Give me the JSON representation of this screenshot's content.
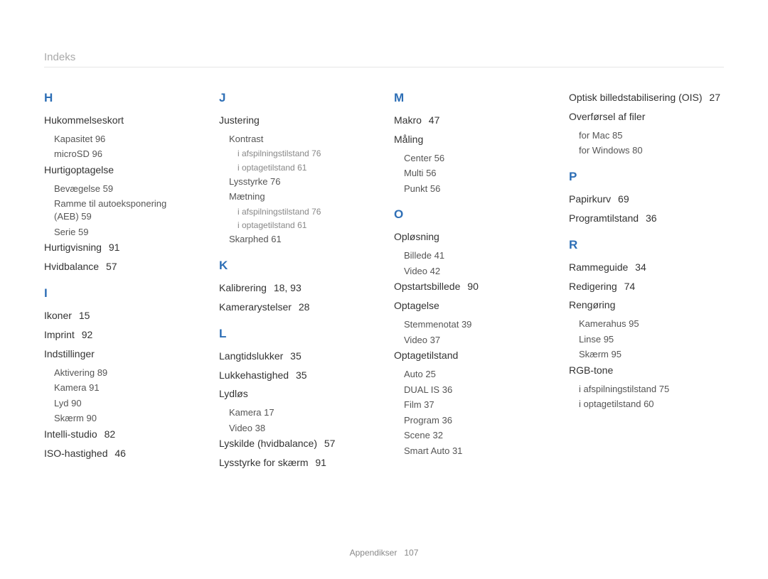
{
  "pageTitle": "Indeks",
  "footer": {
    "label": "Appendikser",
    "page": "107"
  },
  "columns": [
    {
      "sections": [
        {
          "letter": "H",
          "entries": [
            {
              "label": "Hukommelseskort",
              "subs": [
                {
                  "label": "Kapasitet",
                  "page": "96"
                },
                {
                  "label": "microSD",
                  "page": "96"
                }
              ]
            },
            {
              "label": "Hurtigoptagelse",
              "subs": [
                {
                  "label": "Bevægelse",
                  "page": "59"
                },
                {
                  "label": "Ramme til autoeksponering (AEB)",
                  "page": "59"
                },
                {
                  "label": "Serie",
                  "page": "59"
                }
              ]
            },
            {
              "label": "Hurtigvisning",
              "page": "91"
            },
            {
              "label": "Hvidbalance",
              "page": "57"
            }
          ]
        },
        {
          "letter": "I",
          "entries": [
            {
              "label": "Ikoner",
              "page": "15"
            },
            {
              "label": "Imprint",
              "page": "92"
            },
            {
              "label": "Indstillinger",
              "subs": [
                {
                  "label": "Aktivering",
                  "page": "89"
                },
                {
                  "label": "Kamera",
                  "page": "91"
                },
                {
                  "label": "Lyd",
                  "page": "90"
                },
                {
                  "label": "Skærm",
                  "page": "90"
                }
              ]
            },
            {
              "label": "Intelli-studio",
              "page": "82"
            },
            {
              "label": "ISO-hastighed",
              "page": "46"
            }
          ]
        }
      ]
    },
    {
      "sections": [
        {
          "letter": "J",
          "entries": [
            {
              "label": "Justering",
              "subs": [
                {
                  "label": "Kontrast",
                  "subsubs": [
                    {
                      "label": "i afspilningstilstand",
                      "page": "76"
                    },
                    {
                      "label": "i optagetilstand",
                      "page": "61"
                    }
                  ]
                },
                {
                  "label": "Lysstyrke",
                  "page": "76"
                },
                {
                  "label": "Mætning",
                  "subsubs": [
                    {
                      "label": "i afspilningstilstand",
                      "page": "76"
                    },
                    {
                      "label": "i optagetilstand",
                      "page": "61"
                    }
                  ]
                },
                {
                  "label": "Skarphed",
                  "page": "61"
                }
              ]
            }
          ]
        },
        {
          "letter": "K",
          "entries": [
            {
              "label": "Kalibrering",
              "page": "18, 93"
            },
            {
              "label": "Kamerarystelser",
              "page": "28"
            }
          ]
        },
        {
          "letter": "L",
          "entries": [
            {
              "label": "Langtidslukker",
              "page": "35"
            },
            {
              "label": "Lukkehastighed",
              "page": "35"
            },
            {
              "label": "Lydløs",
              "subs": [
                {
                  "label": "Kamera",
                  "page": "17"
                },
                {
                  "label": "Video",
                  "page": "38"
                }
              ]
            },
            {
              "label": "Lyskilde (hvidbalance)",
              "page": "57"
            },
            {
              "label": "Lysstyrke for skærm",
              "page": "91"
            }
          ]
        }
      ]
    },
    {
      "sections": [
        {
          "letter": "M",
          "entries": [
            {
              "label": "Makro",
              "page": "47"
            },
            {
              "label": "Måling",
              "subs": [
                {
                  "label": "Center",
                  "page": "56"
                },
                {
                  "label": "Multi",
                  "page": "56"
                },
                {
                  "label": "Punkt",
                  "page": "56"
                }
              ]
            }
          ]
        },
        {
          "letter": "O",
          "entries": [
            {
              "label": "Opløsning",
              "subs": [
                {
                  "label": "Billede",
                  "page": "41"
                },
                {
                  "label": "Video",
                  "page": "42"
                }
              ]
            },
            {
              "label": "Opstartsbillede",
              "page": "90"
            },
            {
              "label": "Optagelse",
              "subs": [
                {
                  "label": "Stemmenotat",
                  "page": "39"
                },
                {
                  "label": "Video",
                  "page": "37"
                }
              ]
            },
            {
              "label": "Optagetilstand",
              "subs": [
                {
                  "label": "Auto",
                  "page": "25"
                },
                {
                  "label": "DUAL IS",
                  "page": "36"
                },
                {
                  "label": "Film",
                  "page": "37"
                },
                {
                  "label": "Program",
                  "page": "36"
                },
                {
                  "label": "Scene",
                  "page": "32"
                },
                {
                  "label": "Smart Auto",
                  "page": "31"
                }
              ]
            }
          ]
        }
      ]
    },
    {
      "sections": [
        {
          "letter": "",
          "continued": true,
          "entries": [
            {
              "label": "Optisk billedstabilisering (OIS)",
              "page": "27"
            },
            {
              "label": "Overførsel af filer",
              "subs": [
                {
                  "label": "for Mac",
                  "page": "85"
                },
                {
                  "label": "for Windows",
                  "page": "80"
                }
              ]
            }
          ]
        },
        {
          "letter": "P",
          "entries": [
            {
              "label": "Papirkurv",
              "page": "69"
            },
            {
              "label": "Programtilstand",
              "page": "36"
            }
          ]
        },
        {
          "letter": "R",
          "entries": [
            {
              "label": "Rammeguide",
              "page": "34"
            },
            {
              "label": "Redigering",
              "page": "74"
            },
            {
              "label": "Rengøring",
              "subs": [
                {
                  "label": "Kamerahus",
                  "page": "95"
                },
                {
                  "label": "Linse",
                  "page": "95"
                },
                {
                  "label": "Skærm",
                  "page": "95"
                }
              ]
            },
            {
              "label": "RGB-tone",
              "subs": [
                {
                  "label": "i afspilningstilstand",
                  "page": "75"
                },
                {
                  "label": "i optagetilstand",
                  "page": "60"
                }
              ]
            }
          ]
        }
      ]
    }
  ]
}
